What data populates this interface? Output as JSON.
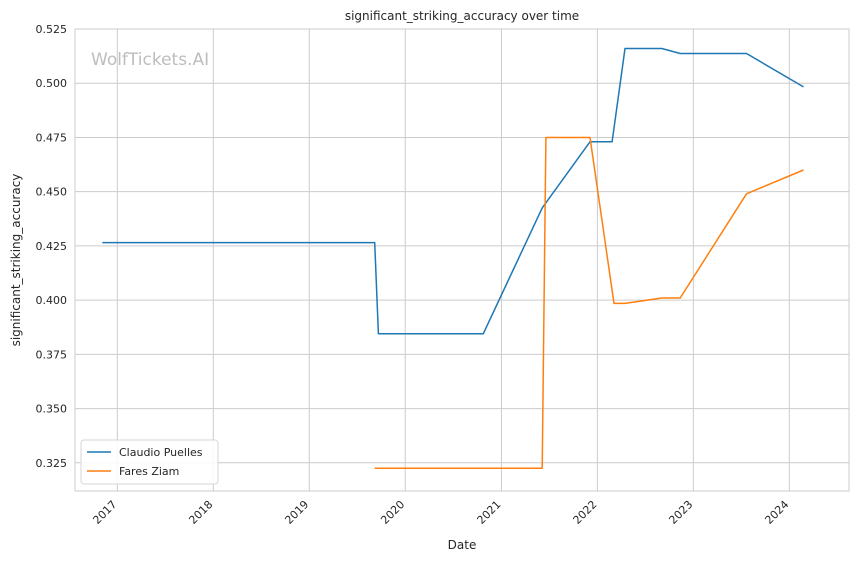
{
  "chart_data": {
    "type": "line",
    "title": "significant_striking_accuracy over time",
    "xlabel": "Date",
    "ylabel": "significant_striking_accuracy",
    "watermark": "WolfTickets.AI",
    "xlim": [
      "2016-07-24",
      "2024-08-15"
    ],
    "ylim": [
      0.312,
      0.525
    ],
    "x_ticks": [
      "2017",
      "2018",
      "2019",
      "2020",
      "2021",
      "2022",
      "2023",
      "2024"
    ],
    "y_ticks": [
      "0.525",
      "0.500",
      "0.475",
      "0.450",
      "0.425",
      "0.400",
      "0.375",
      "0.350",
      "0.325"
    ],
    "grid": true,
    "legend_position": "lower-left",
    "series": [
      {
        "name": "Claudio Puelles",
        "color": "#1f77b4",
        "points": [
          [
            "2016-11-05",
            0.4265
          ],
          [
            "2019-09-07",
            0.4265
          ],
          [
            "2019-09-21",
            0.3845
          ],
          [
            "2020-10-24",
            0.3845
          ],
          [
            "2021-06-05",
            0.4425
          ],
          [
            "2021-12-04",
            0.473
          ],
          [
            "2022-02-26",
            0.473
          ],
          [
            "2022-04-16",
            0.516
          ],
          [
            "2022-09-03",
            0.516
          ],
          [
            "2022-11-12",
            0.5137
          ],
          [
            "2023-07-22",
            0.5137
          ],
          [
            "2024-02-24",
            0.4983
          ]
        ]
      },
      {
        "name": "Fares Ziam",
        "color": "#ff7f0e",
        "points": [
          [
            "2019-09-07",
            0.3225
          ],
          [
            "2021-06-05",
            0.3225
          ],
          [
            "2021-06-19",
            0.475
          ],
          [
            "2021-12-04",
            0.475
          ],
          [
            "2022-03-05",
            0.3985
          ],
          [
            "2022-04-16",
            0.3985
          ],
          [
            "2022-09-03",
            0.401
          ],
          [
            "2022-11-12",
            0.401
          ],
          [
            "2023-07-22",
            0.449
          ],
          [
            "2024-02-24",
            0.46
          ]
        ]
      }
    ]
  }
}
